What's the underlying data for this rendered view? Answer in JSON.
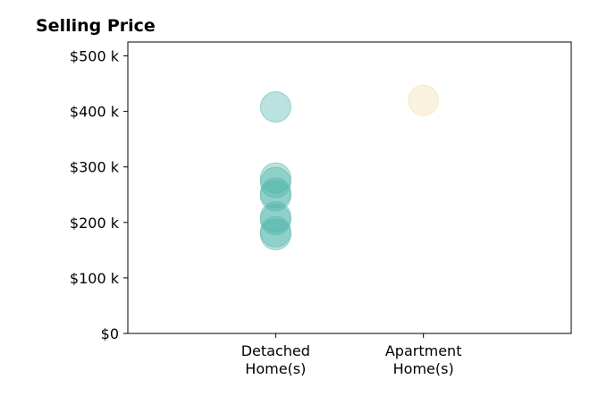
{
  "chart_data": {
    "type": "scatter",
    "title": "Selling Price",
    "xlabel": "",
    "ylabel": "",
    "categories": [
      "Detached\nHome(s)",
      "Apartment\nHome(s)"
    ],
    "ylim": [
      0,
      525000
    ],
    "yticks": [
      0,
      100000,
      200000,
      300000,
      400000,
      500000
    ],
    "ytick_labels": [
      "$0",
      "$100 k",
      "$200 k",
      "$300 k",
      "$400 k",
      "$500 k"
    ],
    "grid": false,
    "series": [
      {
        "category": "Detached\nHome(s)",
        "color": "#4bb3a8",
        "values": [
          408000,
          280000,
          272000,
          253000,
          248000,
          210000,
          205000,
          183000,
          178000
        ]
      },
      {
        "category": "Apartment\nHome(s)",
        "color": "#f2dcaa",
        "values": [
          420000
        ]
      }
    ]
  }
}
